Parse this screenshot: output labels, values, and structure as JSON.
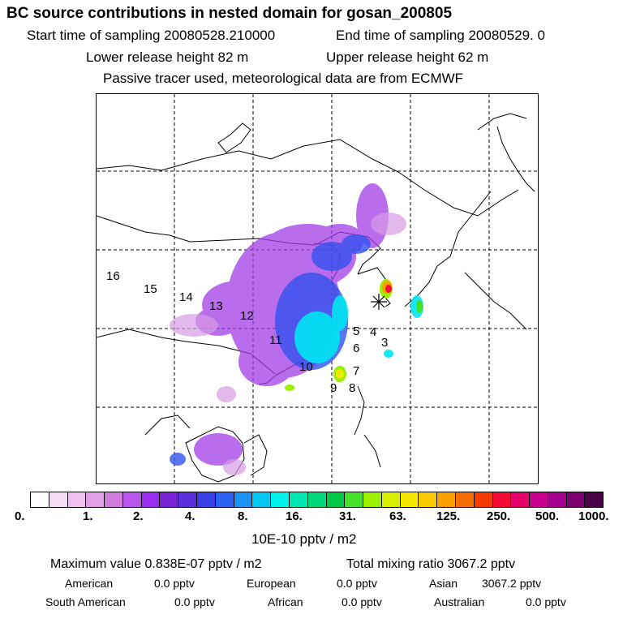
{
  "header": {
    "title": "BC  source contributions in nested domain for gosan_200805",
    "start_label": "Start time of sampling 20080528.210000",
    "end_label": "End time of sampling 20080529.     0",
    "lower_label": "Lower release height   82 m",
    "upper_label": "Upper release height   62 m",
    "tracer_note": "Passive tracer used, meteorological data are from ECMWF"
  },
  "map": {
    "receptor_symbol": "gosan-receptor-star",
    "source_regions": [
      "16",
      "15",
      "14",
      "13",
      "12",
      "11",
      "10",
      "9",
      "8",
      "7",
      "6",
      "5",
      "4",
      "3"
    ]
  },
  "colorbar": {
    "colors": [
      "#ffffff",
      "#f7dcf7",
      "#f0c0f0",
      "#e29fe6",
      "#cf7cdc",
      "#b855ea",
      "#9b2dee",
      "#7a23d4",
      "#5a2ed9",
      "#3b3fe6",
      "#2c63f5",
      "#1a93f7",
      "#00c8f2",
      "#00f0ea",
      "#00e6b4",
      "#00d87a",
      "#00c846",
      "#44e02a",
      "#9bf000",
      "#d8f000",
      "#f6e700",
      "#f8c800",
      "#f8a000",
      "#f56d00",
      "#f53a00",
      "#f50c35",
      "#e6006b",
      "#c8008f",
      "#a6008f",
      "#7c0070",
      "#4a0046"
    ],
    "tick_labels": [
      "0.",
      "1.",
      "2.",
      "4.",
      "8.",
      "16.",
      "31.",
      "63.",
      "125.",
      "250.",
      "500.",
      "1000."
    ],
    "unit": "10E-10 pptv / m2"
  },
  "stats": {
    "max_label": "Maximum value  0.838E-07 pptv / m2",
    "total_label": "Total mixing ratio     3067.2 pptv",
    "american_label": "American",
    "american_value": "0.0 pptv",
    "european_label": "European",
    "european_value": "0.0 pptv",
    "asian_label": "Asian",
    "asian_value": "3067.2 pptv",
    "south_american_label": "South American",
    "south_american_value": "0.0 pptv",
    "african_label": "African",
    "african_value": "0.0 pptv",
    "australian_label": "Australian",
    "australian_value": "0.0 pptv"
  }
}
